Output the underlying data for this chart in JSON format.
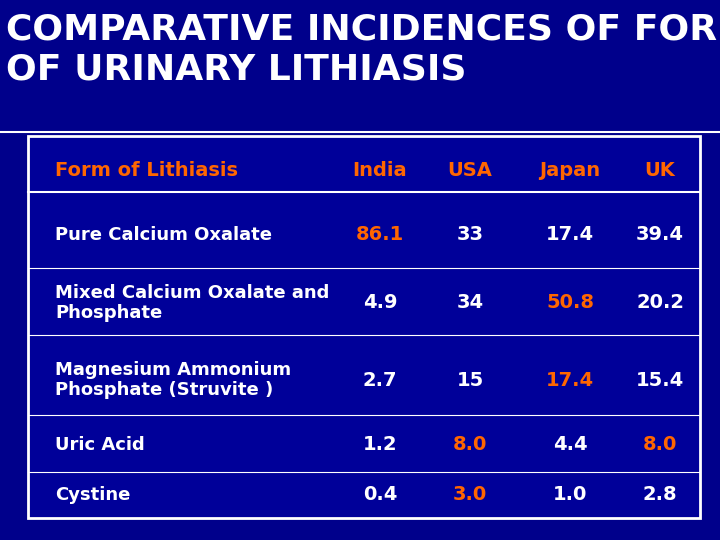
{
  "title_line1": "COMPARATIVE INCIDENCES OF FORMS",
  "title_line2": "OF URINARY LITHIASIS",
  "title_color": "#FFFFFF",
  "title_fontsize": 26,
  "background_color": "#00008B",
  "header_row": [
    "Form of Lithiasis",
    "India",
    "USA",
    "Japan",
    "UK"
  ],
  "header_color": "#FF6600",
  "rows": [
    [
      "Pure Calcium Oxalate",
      "86.1",
      "33",
      "17.4",
      "39.4"
    ],
    [
      "Mixed Calcium Oxalate and\nPhosphate",
      "4.9",
      "34",
      "50.8",
      "20.2"
    ],
    [
      "Magnesium Ammonium\nPhosphate (Struvite )",
      "2.7",
      "15",
      "17.4",
      "15.4"
    ],
    [
      "Uric Acid",
      "1.2",
      "8.0",
      "4.4",
      "8.0"
    ],
    [
      "Cystine",
      "0.4",
      "3.0",
      "1.0",
      "2.8"
    ]
  ],
  "cell_colors": [
    [
      "#FF6600",
      "#FFFFFF",
      "#FFFFFF",
      "#FFFFFF"
    ],
    [
      "#FFFFFF",
      "#FFFFFF",
      "#FF6600",
      "#FFFFFF"
    ],
    [
      "#FFFFFF",
      "#FFFFFF",
      "#FF6600",
      "#FFFFFF"
    ],
    [
      "#FFFFFF",
      "#FF6600",
      "#FFFFFF",
      "#FF6600"
    ],
    [
      "#FFFFFF",
      "#FF6600",
      "#FFFFFF",
      "#FFFFFF"
    ]
  ],
  "row_text_color": "#FFFFFF",
  "cell_fontsize": 14,
  "header_fontsize": 14
}
